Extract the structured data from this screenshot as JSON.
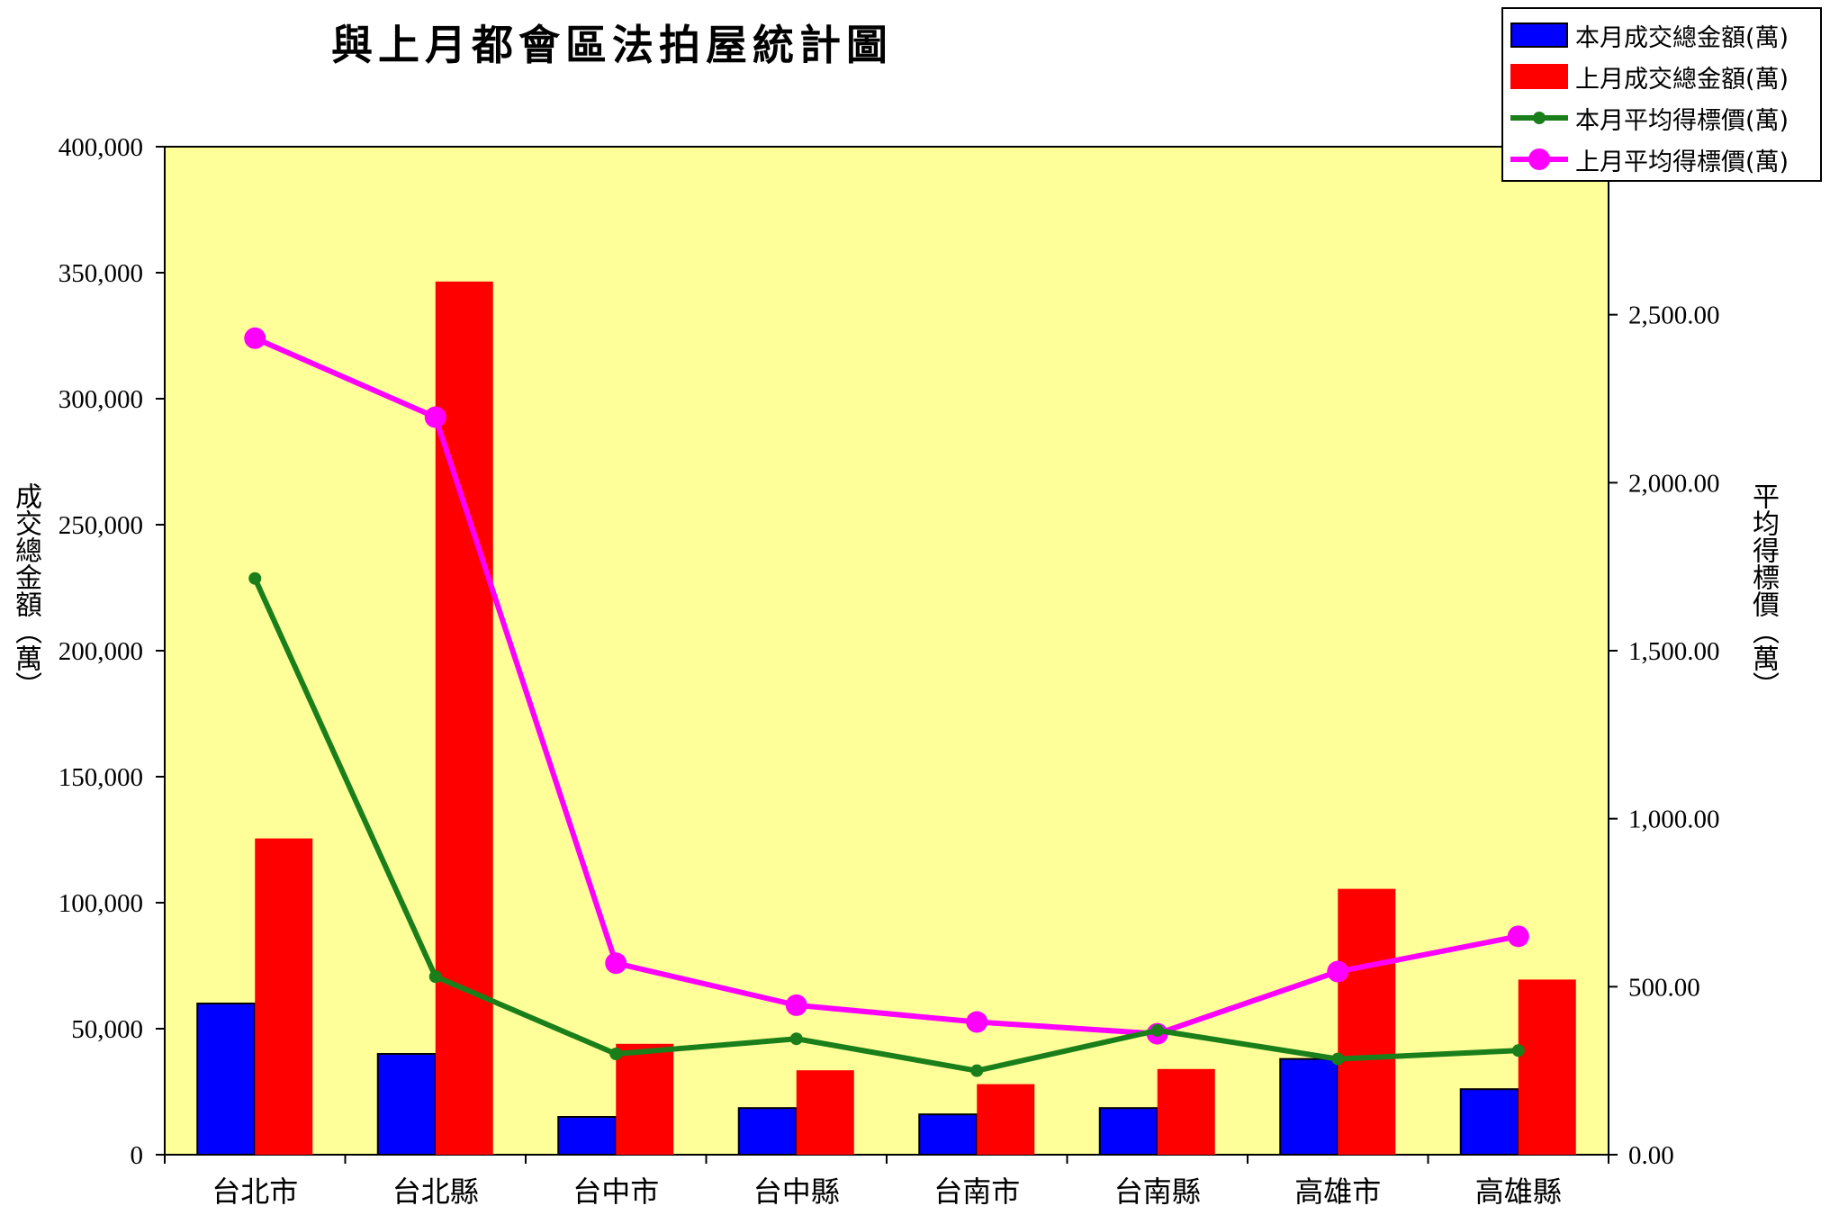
{
  "chart_data": {
    "type": "bar",
    "title": "與上月都會區法拍屋統計圖",
    "categories": [
      "台北市",
      "台北縣",
      "台中市",
      "台中縣",
      "台南市",
      "台南縣",
      "高雄市",
      "高雄縣"
    ],
    "y_left": {
      "label": "成交總金額（萬）",
      "ylim": [
        0,
        400000
      ],
      "ticks": [
        "0",
        "50,000",
        "100,000",
        "150,000",
        "200,000",
        "250,000",
        "300,000",
        "350,000",
        "400,000"
      ]
    },
    "y_right": {
      "label": "平均得標價（萬）",
      "ylim": [
        0,
        3000
      ],
      "ticks": [
        "0.00",
        "500.00",
        "1,000.00",
        "1,500.00",
        "2,000.00",
        "2,500.00"
      ]
    },
    "series": [
      {
        "name": "本月成交總金額(萬)",
        "type": "bar",
        "axis": "left",
        "color": "#0000ff",
        "values": [
          60000,
          40000,
          15000,
          18500,
          16000,
          18500,
          38000,
          26000
        ]
      },
      {
        "name": "上月成交總金額(萬)",
        "type": "bar",
        "axis": "left",
        "color": "#ff0000",
        "values": [
          125500,
          346500,
          44000,
          33500,
          28000,
          34000,
          105500,
          69500
        ]
      },
      {
        "name": "本月平均得標價(萬)",
        "type": "line",
        "axis": "right",
        "color": "#1a7f1a",
        "values": [
          1715,
          530,
          300,
          345,
          250,
          370,
          285,
          310
        ]
      },
      {
        "name": "上月平均得標價(萬)",
        "type": "line",
        "axis": "right",
        "color": "#ff00ff",
        "values": [
          2430,
          2195,
          570,
          445,
          395,
          360,
          545,
          650
        ]
      }
    ],
    "legend_position": "top-right",
    "plot_background": "#ffff99",
    "grid": false
  }
}
